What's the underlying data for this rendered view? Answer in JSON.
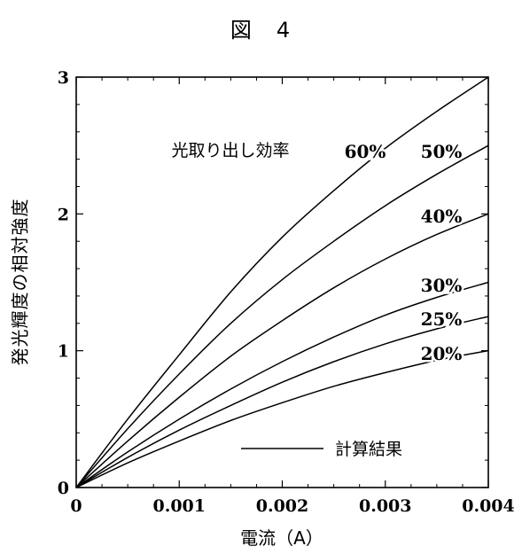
{
  "figure_title": "図　4",
  "chart_data": {
    "type": "line",
    "title": "図　4",
    "xlabel": "電流（A）",
    "ylabel": "発光輝度の相対強度",
    "xlim": [
      0,
      0.004
    ],
    "ylim": [
      0,
      3
    ],
    "xticks": [
      "0",
      "0.001",
      "0.002",
      "0.003",
      "0.004"
    ],
    "yticks": [
      "0",
      "1",
      "2",
      "3"
    ],
    "xtick_values": [
      0,
      0.001,
      0.002,
      0.003,
      0.004
    ],
    "ytick_values": [
      0,
      1,
      2,
      3
    ],
    "grid": false,
    "annotation": "光取り出し効率",
    "legend": {
      "label": "計算結果",
      "placement": "lower-right"
    },
    "series": [
      {
        "name": "60%",
        "x": [
          0,
          0.0005,
          0.001,
          0.0015,
          0.002,
          0.0025,
          0.003,
          0.0035,
          0.004
        ],
        "y": [
          0,
          0.5,
          0.97,
          1.43,
          1.83,
          2.17,
          2.48,
          2.75,
          3.0
        ]
      },
      {
        "name": "50%",
        "x": [
          0,
          0.0005,
          0.001,
          0.0015,
          0.002,
          0.0025,
          0.003,
          0.0035,
          0.004
        ],
        "y": [
          0,
          0.43,
          0.83,
          1.2,
          1.52,
          1.8,
          2.06,
          2.29,
          2.5
        ]
      },
      {
        "name": "40%",
        "x": [
          0,
          0.0005,
          0.001,
          0.0015,
          0.002,
          0.0025,
          0.003,
          0.0035,
          0.004
        ],
        "y": [
          0,
          0.34,
          0.66,
          0.96,
          1.22,
          1.46,
          1.67,
          1.85,
          2.0
        ]
      },
      {
        "name": "30%",
        "x": [
          0,
          0.0005,
          0.001,
          0.0015,
          0.002,
          0.0025,
          0.003,
          0.0035,
          0.004
        ],
        "y": [
          0,
          0.26,
          0.5,
          0.72,
          0.92,
          1.1,
          1.26,
          1.39,
          1.5
        ]
      },
      {
        "name": "25%",
        "x": [
          0,
          0.0005,
          0.001,
          0.0015,
          0.002,
          0.0025,
          0.003,
          0.0035,
          0.004
        ],
        "y": [
          0,
          0.22,
          0.42,
          0.6,
          0.77,
          0.92,
          1.05,
          1.16,
          1.25
        ]
      },
      {
        "name": "20%",
        "x": [
          0,
          0.0005,
          0.001,
          0.0015,
          0.002,
          0.0025,
          0.003,
          0.0035,
          0.004
        ],
        "y": [
          0,
          0.18,
          0.34,
          0.49,
          0.62,
          0.74,
          0.84,
          0.93,
          1.0
        ]
      }
    ]
  }
}
